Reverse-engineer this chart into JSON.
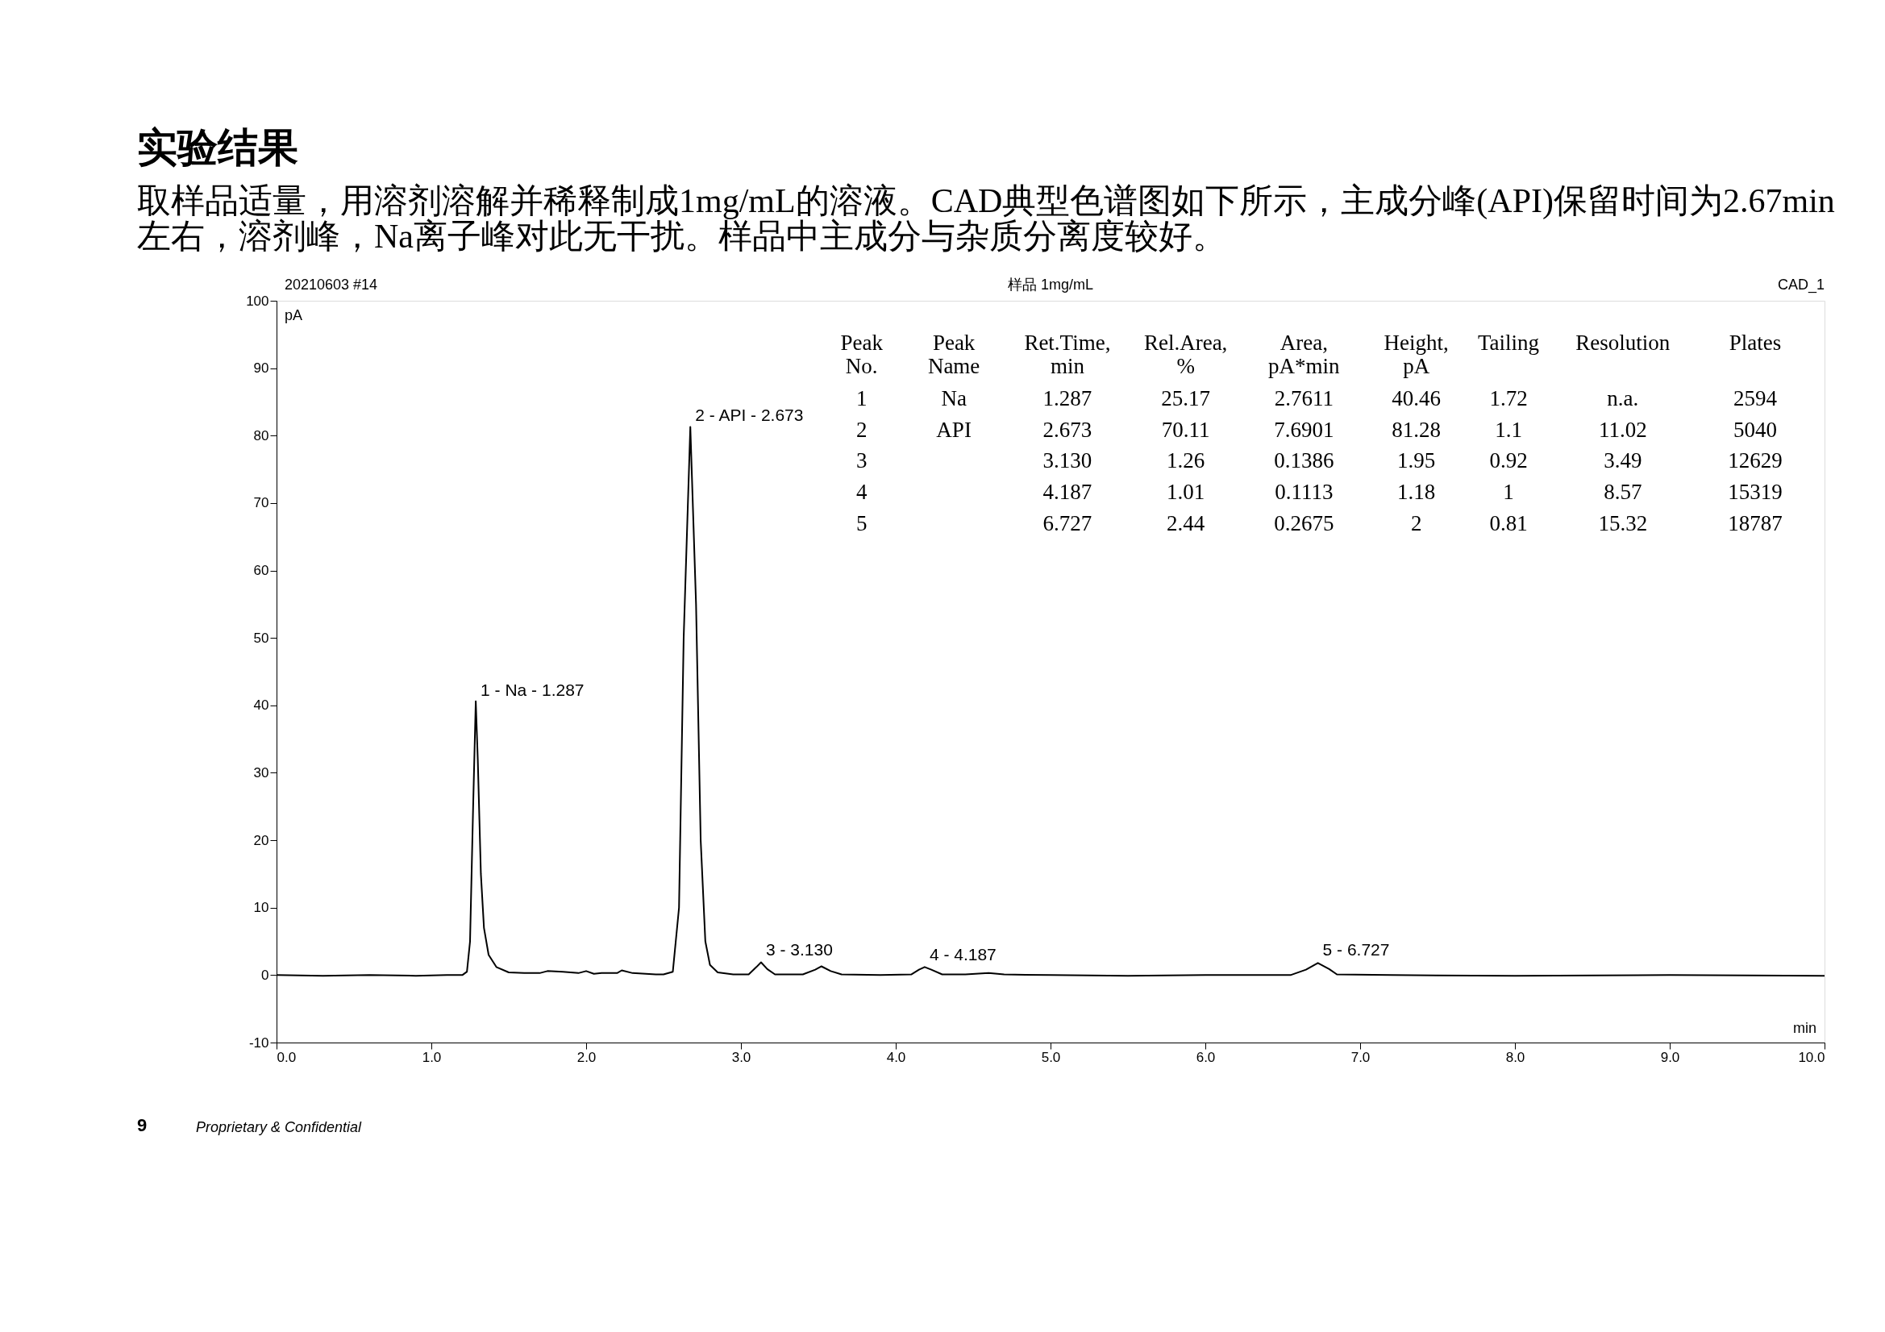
{
  "chart_data": {
    "type": "line",
    "title": "实验结果",
    "subtitle": "取样品适量，用溶剂溶解并稀释制成1mg/mL的溶液。CAD典型色谱图如下所示，主成分峰(API)保留时间为2.67min\n左右，溶剂峰，Na离子峰对此无干扰。样品中主成分与杂质分离度较好。",
    "xlabel": "min",
    "ylabel": "pA",
    "series": [
      {
        "color": "#000000",
        "x": [
          0.0,
          0.3,
          0.6,
          0.9,
          1.1,
          1.2,
          1.23,
          1.25,
          1.27,
          1.287,
          1.3,
          1.32,
          1.34,
          1.37,
          1.42,
          1.5,
          1.6,
          1.7,
          1.75,
          1.85,
          1.95,
          2.0,
          2.05,
          2.1,
          2.2,
          2.23,
          2.3,
          2.45,
          2.5,
          2.56,
          2.6,
          2.63,
          2.673,
          2.71,
          2.74,
          2.77,
          2.8,
          2.85,
          2.95,
          3.05,
          3.1,
          3.13,
          3.17,
          3.22,
          3.4,
          3.48,
          3.52,
          3.58,
          3.65,
          3.9,
          4.1,
          4.15,
          4.187,
          4.23,
          4.3,
          4.45,
          4.6,
          4.7,
          5.0,
          5.5,
          6.0,
          6.55,
          6.65,
          6.727,
          6.8,
          6.85,
          7.2,
          8.0,
          9.0,
          10.0
        ],
        "values": [
          0,
          -0.1,
          0,
          -0.1,
          0,
          0,
          0.5,
          5,
          25,
          40.6,
          32,
          15,
          7,
          3,
          1.2,
          0.4,
          0.3,
          0.3,
          0.6,
          0.5,
          0.3,
          0.6,
          0.2,
          0.3,
          0.3,
          0.7,
          0.3,
          0.1,
          0.1,
          0.5,
          10,
          50,
          81.3,
          55,
          20,
          5,
          1.5,
          0.4,
          0.1,
          0.1,
          1.2,
          1.9,
          0.9,
          0.1,
          0.1,
          0.8,
          1.3,
          0.6,
          0.1,
          0,
          0.1,
          0.8,
          1.2,
          0.8,
          0.1,
          0.1,
          0.3,
          0.1,
          0,
          -0.1,
          0,
          0,
          0.8,
          1.8,
          0.9,
          0.1,
          0,
          -0.1,
          0,
          -0.1
        ]
      }
    ],
    "xlim": [
      0,
      10
    ],
    "ylim": [
      -10,
      100
    ],
    "xticks": [
      {
        "value": 0,
        "label": "0.0"
      },
      {
        "value": 1,
        "label": "1.0"
      },
      {
        "value": 2,
        "label": "2.0"
      },
      {
        "value": 3,
        "label": "3.0"
      },
      {
        "value": 4,
        "label": "4.0"
      },
      {
        "value": 5,
        "label": "5.0"
      },
      {
        "value": 6,
        "label": "6.0"
      },
      {
        "value": 7,
        "label": "7.0"
      },
      {
        "value": 8,
        "label": "8.0"
      },
      {
        "value": 9,
        "label": "9.0"
      },
      {
        "value": 10,
        "label": "10.0"
      }
    ],
    "yticks": [
      -10,
      0,
      10,
      20,
      30,
      40,
      50,
      60,
      70,
      80,
      90,
      100
    ],
    "grid": false,
    "legend": false,
    "annotations": [
      "20210603 #14",
      "样品 1mg/mL",
      "CAD_1",
      "9",
      "Proprietary & Confidential",
      "Peak No.",
      "Peak Name",
      "Ret.Time, min",
      "Rel.Area, %",
      "Area, pA*min",
      "Height, pA",
      "Tailing",
      "Resolution",
      "Plates",
      "1",
      "Na",
      "1.287",
      "25.17",
      "2.7611",
      "40.46",
      "1.72",
      "n.a.",
      "2594",
      "2",
      "API",
      "2.673",
      "70.11",
      "7.6901",
      "81.28",
      "1.1",
      "11.02",
      "5040",
      "3",
      "3.130",
      "1.26",
      "0.1386",
      "1.95",
      "0.92",
      "3.49",
      "12629",
      "4",
      "4.187",
      "1.01",
      "0.1113",
      "1.18",
      "1",
      "8.57",
      "15319",
      "5",
      "6.727",
      "2.44",
      "0.2675",
      "2",
      "0.81",
      "15.32",
      "18787",
      {
        "text": "1 - Na - 1.287",
        "x": 1.287,
        "y": 40.46
      },
      {
        "text": "2 - API - 2.673",
        "x": 2.673,
        "y": 81.28
      },
      {
        "text": "3 - 3.130",
        "x": 3.13,
        "y": 1.95
      },
      {
        "text": "4 - 4.187",
        "x": 4.187,
        "y": 1.18
      },
      {
        "text": "5 - 6.727",
        "x": 6.727,
        "y": 2
      }
    ]
  }
}
